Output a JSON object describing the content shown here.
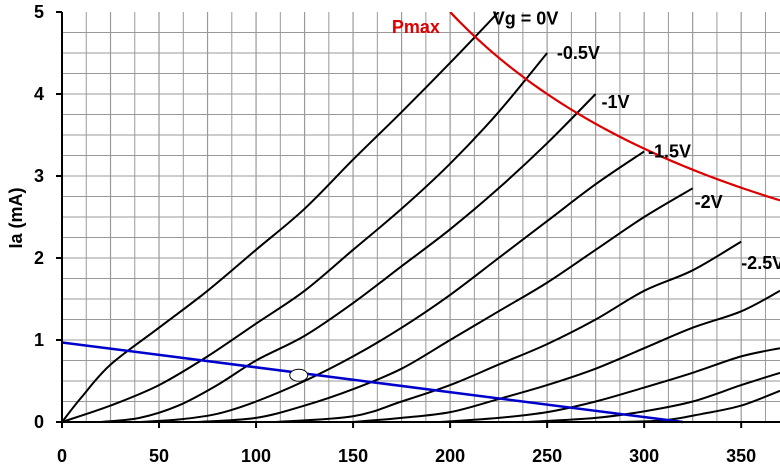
{
  "chart_data": {
    "type": "line",
    "title": "",
    "xlabel": "",
    "ylabel": "Ia (mA)",
    "xlim": [
      0,
      370
    ],
    "ylim": [
      0,
      5
    ],
    "x_ticks": [
      "0",
      "50",
      "100",
      "150",
      "200",
      "250",
      "300",
      "350"
    ],
    "y_ticks": [
      "0",
      "1",
      "2",
      "3",
      "4",
      "5"
    ],
    "grid": true,
    "colors": {
      "curves": "#000000",
      "pmax": "#dd0000",
      "load_line": "#0000cc",
      "grid": "#999999"
    },
    "series": [
      {
        "name": "Vg = 0V",
        "label_at": [
          222,
          4.92
        ],
        "points": [
          [
            0,
            0
          ],
          [
            10,
            0.3
          ],
          [
            25,
            0.7
          ],
          [
            50,
            1.15
          ],
          [
            75,
            1.6
          ],
          [
            100,
            2.1
          ],
          [
            125,
            2.6
          ],
          [
            150,
            3.2
          ],
          [
            175,
            3.78
          ],
          [
            200,
            4.38
          ],
          [
            225,
            5.0
          ]
        ]
      },
      {
        "name": "-0.5V",
        "label_at": [
          255,
          4.5
        ],
        "points": [
          [
            0,
            0
          ],
          [
            25,
            0.2
          ],
          [
            50,
            0.45
          ],
          [
            75,
            0.8
          ],
          [
            100,
            1.2
          ],
          [
            125,
            1.6
          ],
          [
            150,
            2.1
          ],
          [
            175,
            2.6
          ],
          [
            200,
            3.15
          ],
          [
            225,
            3.78
          ],
          [
            250,
            4.5
          ]
        ]
      },
      {
        "name": "-1V",
        "label_at": [
          278,
          3.9
        ],
        "points": [
          [
            20,
            0
          ],
          [
            40,
            0.05
          ],
          [
            60,
            0.2
          ],
          [
            80,
            0.45
          ],
          [
            100,
            0.75
          ],
          [
            125,
            1.05
          ],
          [
            150,
            1.45
          ],
          [
            175,
            1.9
          ],
          [
            200,
            2.35
          ],
          [
            225,
            2.85
          ],
          [
            250,
            3.4
          ],
          [
            275,
            4.0
          ]
        ]
      },
      {
        "name": "-1.5V",
        "label_at": [
          302,
          3.3
        ],
        "points": [
          [
            40,
            0
          ],
          [
            60,
            0.03
          ],
          [
            80,
            0.1
          ],
          [
            100,
            0.25
          ],
          [
            125,
            0.5
          ],
          [
            150,
            0.8
          ],
          [
            175,
            1.15
          ],
          [
            200,
            1.55
          ],
          [
            225,
            2.0
          ],
          [
            250,
            2.45
          ],
          [
            275,
            2.9
          ],
          [
            300,
            3.3
          ]
        ]
      },
      {
        "name": "-2V",
        "label_at": [
          326,
          2.68
        ],
        "points": [
          [
            70,
            0
          ],
          [
            100,
            0.05
          ],
          [
            125,
            0.2
          ],
          [
            150,
            0.4
          ],
          [
            175,
            0.65
          ],
          [
            200,
            1.0
          ],
          [
            225,
            1.35
          ],
          [
            250,
            1.7
          ],
          [
            275,
            2.1
          ],
          [
            300,
            2.5
          ],
          [
            325,
            2.85
          ]
        ]
      },
      {
        "name": "-2.5V",
        "label_at": [
          350,
          1.94
        ],
        "points": [
          [
            110,
            0
          ],
          [
            150,
            0.07
          ],
          [
            175,
            0.25
          ],
          [
            200,
            0.45
          ],
          [
            225,
            0.7
          ],
          [
            250,
            0.95
          ],
          [
            275,
            1.25
          ],
          [
            300,
            1.6
          ],
          [
            325,
            1.85
          ],
          [
            350,
            2.2
          ]
        ]
      },
      {
        "name": "",
        "points": [
          [
            150,
            0
          ],
          [
            175,
            0.05
          ],
          [
            200,
            0.12
          ],
          [
            225,
            0.28
          ],
          [
            250,
            0.45
          ],
          [
            275,
            0.65
          ],
          [
            300,
            0.9
          ],
          [
            325,
            1.15
          ],
          [
            350,
            1.35
          ],
          [
            370,
            1.6
          ]
        ]
      },
      {
        "name": "",
        "points": [
          [
            195,
            0
          ],
          [
            225,
            0.05
          ],
          [
            250,
            0.12
          ],
          [
            275,
            0.25
          ],
          [
            300,
            0.42
          ],
          [
            325,
            0.6
          ],
          [
            350,
            0.8
          ],
          [
            370,
            0.9
          ]
        ]
      },
      {
        "name": "",
        "points": [
          [
            240,
            0
          ],
          [
            275,
            0.05
          ],
          [
            300,
            0.13
          ],
          [
            325,
            0.25
          ],
          [
            350,
            0.45
          ],
          [
            370,
            0.6
          ]
        ]
      },
      {
        "name": "",
        "points": [
          [
            285,
            0
          ],
          [
            310,
            0.02
          ],
          [
            330,
            0.1
          ],
          [
            350,
            0.2
          ],
          [
            370,
            0.38
          ]
        ]
      }
    ],
    "pmax_curve": {
      "name": "Pmax",
      "label_at": [
        170,
        4.82
      ],
      "power_mw": 1000,
      "x_range": [
        200,
        370
      ]
    },
    "load_line": {
      "points": [
        [
          0,
          0.97
        ],
        [
          320,
          0
        ]
      ]
    },
    "operating_point": {
      "x": 122,
      "y": 0.57
    }
  }
}
